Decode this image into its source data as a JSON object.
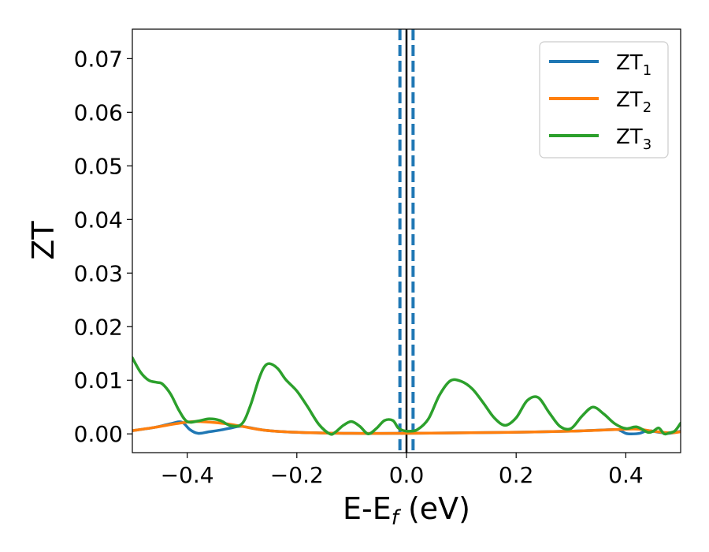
{
  "chart_data": {
    "type": "line",
    "xlabel": "E-E",
    "xlabel_subscript": "f",
    "xlabel_unit": " (eV)",
    "ylabel": "ZT",
    "xlim": [
      -0.5,
      0.5
    ],
    "ylim": [
      -0.0035,
      0.0755
    ],
    "xticks": [
      -0.4,
      -0.2,
      0.0,
      0.2,
      0.4
    ],
    "xtick_labels": [
      "−0.4",
      "−0.2",
      "0.0",
      "0.2",
      "0.4"
    ],
    "yticks": [
      0.0,
      0.01,
      0.02,
      0.03,
      0.04,
      0.05,
      0.06,
      0.07
    ],
    "ytick_labels": [
      "0.00",
      "0.01",
      "0.02",
      "0.03",
      "0.04",
      "0.05",
      "0.06",
      "0.07"
    ],
    "legend_position": "top-right",
    "grid": false,
    "vertical_lines": [
      {
        "x": -0.012,
        "style": "dashed",
        "color": "#1f77b4"
      },
      {
        "x": 0.0,
        "style": "solid",
        "color": "#000000"
      },
      {
        "x": 0.012,
        "style": "dashed",
        "color": "#1f77b4"
      }
    ],
    "series": [
      {
        "name": "ZT",
        "name_subscript": "1",
        "color": "#1f77b4",
        "x": [
          -0.5,
          -0.46,
          -0.43,
          -0.41,
          -0.395,
          -0.38,
          -0.36,
          -0.34,
          -0.32,
          -0.3,
          -0.26,
          -0.2,
          -0.1,
          0.0,
          0.1,
          0.2,
          0.3,
          0.38,
          0.39,
          0.4,
          0.41,
          0.425,
          0.44,
          0.46,
          0.48,
          0.5
        ],
        "values": [
          0.0006,
          0.0012,
          0.0019,
          0.0022,
          0.0008,
          0.0001,
          0.0004,
          0.0007,
          0.0011,
          0.0014,
          0.0007,
          0.0003,
          0.0001,
          0.0001,
          0.0002,
          0.0003,
          0.0005,
          0.0008,
          0.0006,
          0.0001,
          0.0,
          0.0001,
          0.0006,
          0.0003,
          0.0001,
          0.0005
        ]
      },
      {
        "name": "ZT",
        "name_subscript": "2",
        "color": "#ff7f0e",
        "x": [
          -0.5,
          -0.46,
          -0.42,
          -0.39,
          -0.36,
          -0.33,
          -0.3,
          -0.26,
          -0.2,
          -0.1,
          0.0,
          0.1,
          0.2,
          0.3,
          0.38,
          0.42,
          0.45,
          0.48,
          0.5
        ],
        "values": [
          0.0006,
          0.0012,
          0.0019,
          0.0023,
          0.0022,
          0.0019,
          0.0014,
          0.0007,
          0.0003,
          0.0001,
          0.0001,
          0.0002,
          0.0003,
          0.0005,
          0.0008,
          0.0009,
          0.0005,
          0.0002,
          0.0004
        ]
      },
      {
        "name": "ZT",
        "name_subscript": "3",
        "color": "#2ca02c",
        "x": [
          -0.5,
          -0.485,
          -0.47,
          -0.455,
          -0.445,
          -0.43,
          -0.415,
          -0.4,
          -0.38,
          -0.36,
          -0.34,
          -0.32,
          -0.3,
          -0.285,
          -0.27,
          -0.26,
          -0.25,
          -0.235,
          -0.22,
          -0.2,
          -0.18,
          -0.16,
          -0.14,
          -0.13,
          -0.115,
          -0.1,
          -0.085,
          -0.07,
          -0.055,
          -0.04,
          -0.025,
          -0.015,
          -0.005,
          0.005,
          0.02,
          0.04,
          0.06,
          0.08,
          0.1,
          0.12,
          0.14,
          0.16,
          0.18,
          0.2,
          0.22,
          0.24,
          0.26,
          0.28,
          0.3,
          0.32,
          0.34,
          0.36,
          0.38,
          0.4,
          0.42,
          0.44,
          0.45,
          0.46,
          0.47,
          0.48,
          0.49,
          0.5
        ],
        "values": [
          0.0142,
          0.0115,
          0.01,
          0.0096,
          0.0093,
          0.0074,
          0.0044,
          0.0023,
          0.0024,
          0.0028,
          0.0025,
          0.0015,
          0.0019,
          0.0052,
          0.01,
          0.0124,
          0.0131,
          0.0122,
          0.0101,
          0.008,
          0.005,
          0.0018,
          0.0,
          0.0003,
          0.0016,
          0.0023,
          0.0014,
          0.0,
          0.001,
          0.0025,
          0.0025,
          0.0011,
          0.0006,
          0.0005,
          0.0008,
          0.0028,
          0.0072,
          0.0099,
          0.0098,
          0.0084,
          0.0058,
          0.003,
          0.0016,
          0.003,
          0.0062,
          0.0068,
          0.004,
          0.0014,
          0.001,
          0.0033,
          0.005,
          0.0037,
          0.0019,
          0.001,
          0.0013,
          0.0003,
          0.0005,
          0.0011,
          0.0,
          0.0002,
          0.0006,
          0.002
        ]
      }
    ]
  }
}
